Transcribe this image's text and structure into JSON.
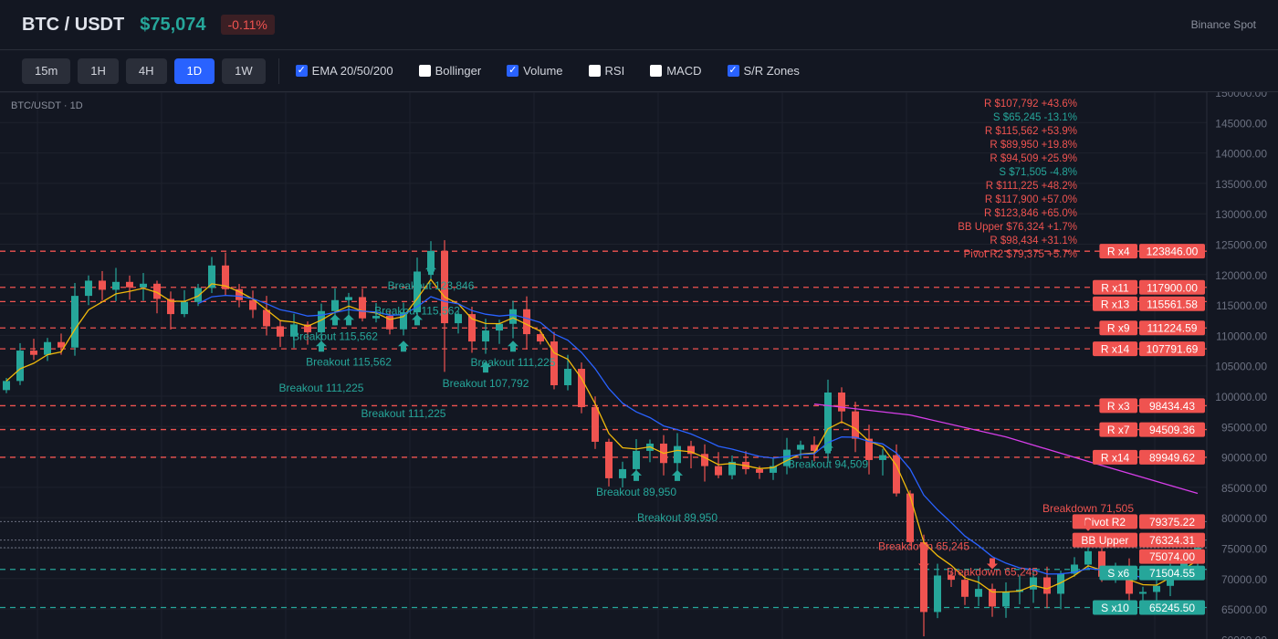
{
  "header": {
    "title": "BTC / USDT",
    "price": "$75,074",
    "change": "-0.11%",
    "exchange": "Binance Spot"
  },
  "toolbar": {
    "timeframes": [
      {
        "label": "15m"
      },
      {
        "label": "1H"
      },
      {
        "label": "4H"
      },
      {
        "label": "1D",
        "active": true
      },
      {
        "label": "1W"
      }
    ],
    "indicators": [
      {
        "label": "EMA 20/50/200",
        "checked": true
      },
      {
        "label": "Bollinger",
        "checked": false
      },
      {
        "label": "Volume",
        "checked": true
      },
      {
        "label": "RSI",
        "checked": false
      },
      {
        "label": "MACD",
        "checked": false
      },
      {
        "label": "S/R Zones",
        "checked": true
      }
    ]
  },
  "chart_symbol": "BTC/USDT · 1D",
  "colors": {
    "up": "#26a69a",
    "down": "#ef5350",
    "ema20": "#f0b90b",
    "ema50": "#2962ff",
    "ema200": "#d63ee8",
    "grid": "#1e222d",
    "accent": "#2962ff"
  },
  "chart_data": {
    "type": "candlestick",
    "ylim": [
      60000,
      150000
    ],
    "yticks": [
      "150000.00",
      "145000.00",
      "140000.00",
      "135000.00",
      "130000.00",
      "125000.00",
      "120000.00",
      "115000.00",
      "110000.00",
      "105000.00",
      "100000.00",
      "95000.00",
      "90000.00",
      "85000.00",
      "80000.00",
      "75000.00",
      "70000.00",
      "65000.00",
      "60000.00"
    ],
    "closes": [
      102500,
      107500,
      106800,
      108900,
      108000,
      116500,
      119000,
      117500,
      118800,
      117900,
      118500,
      116000,
      113500,
      115500,
      117800,
      121500,
      117600,
      115800,
      114200,
      111500,
      109800,
      111800,
      110500,
      114000,
      115800,
      116300,
      112800,
      113200,
      111000,
      113800,
      120500,
      123900,
      112000,
      113500,
      109000,
      110800,
      111900,
      114300,
      110200,
      109000,
      101800,
      104500,
      98200,
      92500,
      86500,
      88000,
      91000,
      92200,
      89000,
      91800,
      90500,
      88500,
      87000,
      89200,
      88000,
      87400,
      88500,
      91200,
      92000,
      91000,
      100600,
      97500,
      93000,
      89500,
      90300,
      84000,
      76000,
      64500,
      70500,
      69800,
      67000,
      68300,
      65400,
      67800,
      68200,
      70200,
      67500,
      70800,
      72300,
      74500,
      70300,
      71200,
      67500,
      67800,
      68800,
      72000,
      73800,
      75074
    ],
    "ema200": [
      [
        59,
        98700
      ],
      [
        66,
        96900
      ],
      [
        73,
        93300
      ],
      [
        80,
        88600
      ],
      [
        87,
        84000
      ]
    ],
    "resistance": [
      {
        "tag": "R x4",
        "value": "123846.00",
        "price": 123846
      },
      {
        "tag": "R x11",
        "value": "117900.00",
        "price": 117900
      },
      {
        "tag": "R x13",
        "value": "115561.58",
        "price": 115561.58
      },
      {
        "tag": "R x9",
        "value": "111224.59",
        "price": 111224.59
      },
      {
        "tag": "R x14",
        "value": "107791.69",
        "price": 107791.69
      },
      {
        "tag": "R x3",
        "value": "98434.43",
        "price": 98434.43
      },
      {
        "tag": "R x7",
        "value": "94509.36",
        "price": 94509.36
      },
      {
        "tag": "R x14",
        "value": "89949.62",
        "price": 89949.62
      }
    ],
    "support": [
      {
        "tag": "S x6",
        "value": "71504.55",
        "price": 71504.55
      },
      {
        "tag": "S x10",
        "value": "65245.50",
        "price": 65245.5
      }
    ],
    "levels": [
      {
        "tag": "Pivot R2",
        "value": "79375.22",
        "price": 79375.22
      },
      {
        "tag": "BB Upper",
        "value": "76324.31",
        "price": 76324.31
      },
      {
        "tag": "",
        "value": "75074.00",
        "price": 75074
      }
    ],
    "level_list": [
      {
        "text": "R $107,792 +43.6%",
        "kind": "r"
      },
      {
        "text": "S $65,245 -13.1%",
        "kind": "s"
      },
      {
        "text": "R $115,562 +53.9%",
        "kind": "r"
      },
      {
        "text": "R $89,950 +19.8%",
        "kind": "r"
      },
      {
        "text": "R $94,509 +25.9%",
        "kind": "r"
      },
      {
        "text": "S $71,505 -4.8%",
        "kind": "s"
      },
      {
        "text": "R $111,225 +48.2%",
        "kind": "r"
      },
      {
        "text": "R $117,900 +57.0%",
        "kind": "r"
      },
      {
        "text": "R $123,846 +65.0%",
        "kind": "r"
      },
      {
        "text": "BB Upper $76,324 +1.7%",
        "kind": "r"
      },
      {
        "text": "R $98,434 +31.1%",
        "kind": "r"
      },
      {
        "text": "Pivot R2 $79,375 +5.7%",
        "kind": "r"
      }
    ],
    "signals": [
      {
        "text": "Breakout 123,846",
        "type": "up",
        "candle": 31,
        "price": 123846
      },
      {
        "text": "Breakout 115,562",
        "type": "up",
        "candle": 24,
        "price": 115562
      },
      {
        "text": "Breakout 115,562",
        "type": "up",
        "candle": 25,
        "price": 115562
      },
      {
        "text": "Breakout 111,225",
        "type": "up",
        "candle": 23,
        "price": 111225
      },
      {
        "text": "Breakout 111,225",
        "type": "up",
        "candle": 29,
        "price": 111225
      },
      {
        "text": "Breakout 115,562",
        "type": "up",
        "candle": 30,
        "price": 115562
      },
      {
        "text": "Breakout 107,792",
        "type": "up",
        "candle": 35,
        "price": 107792
      },
      {
        "text": "Breakout 111,225",
        "type": "up",
        "candle": 37,
        "price": 111225
      },
      {
        "text": "Breakout 89,950",
        "type": "up",
        "candle": 46,
        "price": 89950
      },
      {
        "text": "Breakout 89,950",
        "type": "up",
        "candle": 49,
        "price": 89950
      },
      {
        "text": "Breakout 94,509",
        "type": "up",
        "candle": 60,
        "price": 94509
      },
      {
        "text": "Breakdown 65,245",
        "type": "down",
        "candle": 67,
        "price": 65245
      },
      {
        "text": "Breakdown 65,245",
        "type": "down",
        "candle": 72,
        "price": 65245
      },
      {
        "text": "Breakdown 71,505",
        "type": "down",
        "candle": 79,
        "price": 71505
      }
    ]
  }
}
